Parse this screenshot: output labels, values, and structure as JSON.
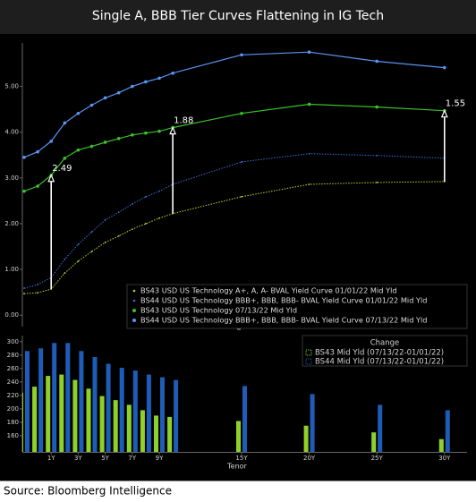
{
  "title": "Single A, BBB Tier Curves Flattening in IG Tech",
  "source": "Source: Bloomberg Intelligence",
  "chart_data": [
    {
      "type": "line",
      "ylim": [
        -0.25,
        5.95
      ],
      "yticks": [
        {
          "value": 0,
          "label": "0.00"
        },
        {
          "value": 1,
          "label": "1.00"
        },
        {
          "value": 2,
          "label": "2.00"
        },
        {
          "value": 3,
          "label": "3.00"
        },
        {
          "value": 4,
          "label": "4.00"
        },
        {
          "value": 5,
          "label": "5.00"
        }
      ],
      "series": [
        {
          "name": "BS43 USD US Technology A+, A, A- BVAL Yield Curve 01/01/22 Mid Yld",
          "color": "#b8d437",
          "dashed": true,
          "values": [
            0.47,
            0.49,
            0.57,
            0.92,
            1.18,
            1.39,
            1.59,
            1.73,
            1.88,
            2.0,
            2.12,
            2.22,
            2.59,
            2.86,
            2.9,
            2.92
          ]
        },
        {
          "name": "BS44 USD US Technology BBB+, BBB, BBB- BVAL Yield Curve 01/01/22 Mid Yld",
          "color": "#3a6fd0",
          "dashed": true,
          "values": [
            0.59,
            0.67,
            0.82,
            1.22,
            1.55,
            1.82,
            2.08,
            2.25,
            2.43,
            2.59,
            2.71,
            2.86,
            3.35,
            3.53,
            3.49,
            3.43
          ]
        },
        {
          "name": "BS43 USD US Technology 07/13/22 Mid Yld",
          "color": "#3cc12a",
          "dashed": false,
          "values": [
            2.71,
            2.82,
            3.06,
            3.43,
            3.61,
            3.69,
            3.78,
            3.86,
            3.94,
            3.98,
            4.02,
            4.1,
            4.41,
            4.61,
            4.55,
            4.47
          ]
        },
        {
          "name": "BS44 USD US Technology BBB+, BBB, BBB- BVAL Yield Curve 07/13/22 Mid Yld",
          "color": "#5a94f2",
          "dashed": false,
          "values": [
            3.45,
            3.57,
            3.8,
            4.2,
            4.41,
            4.59,
            4.75,
            4.86,
            5.0,
            5.1,
            5.18,
            5.29,
            5.69,
            5.75,
            5.55,
            5.41
          ]
        }
      ],
      "annotations": [
        {
          "text": "2.49",
          "category_index": 2
        },
        {
          "text": "1.88",
          "category_index": 11
        },
        {
          "text": "1.55",
          "category_index": 15
        }
      ]
    },
    {
      "type": "bar",
      "xlabel": "Tenor",
      "legend_title": "Change",
      "categories": [
        null,
        null,
        "1Y",
        null,
        "3Y",
        null,
        "5Y",
        null,
        "7Y",
        null,
        "9Y",
        null,
        "15Y",
        "20Y",
        "25Y",
        "30Y"
      ],
      "ylim": [
        136,
        309
      ],
      "yticks": [
        160,
        180,
        200,
        220,
        240,
        260,
        280,
        300
      ],
      "series": [
        {
          "name": "BS43 Mid Yld (07/13/22-01/01/22)",
          "color": "#8fd12a",
          "values": [
            224,
            233,
            249,
            251,
            243,
            230,
            219,
            213,
            206,
            198,
            190,
            188,
            182,
            175,
            165,
            155
          ]
        },
        {
          "name": "BS44 Mid Yld (07/13/22-01/01/22)",
          "color": "#1d5db8",
          "values": [
            286,
            290,
            298,
            298,
            286,
            277,
            267,
            261,
            257,
            251,
            247,
            243,
            234,
            222,
            206,
            198
          ]
        }
      ]
    }
  ]
}
